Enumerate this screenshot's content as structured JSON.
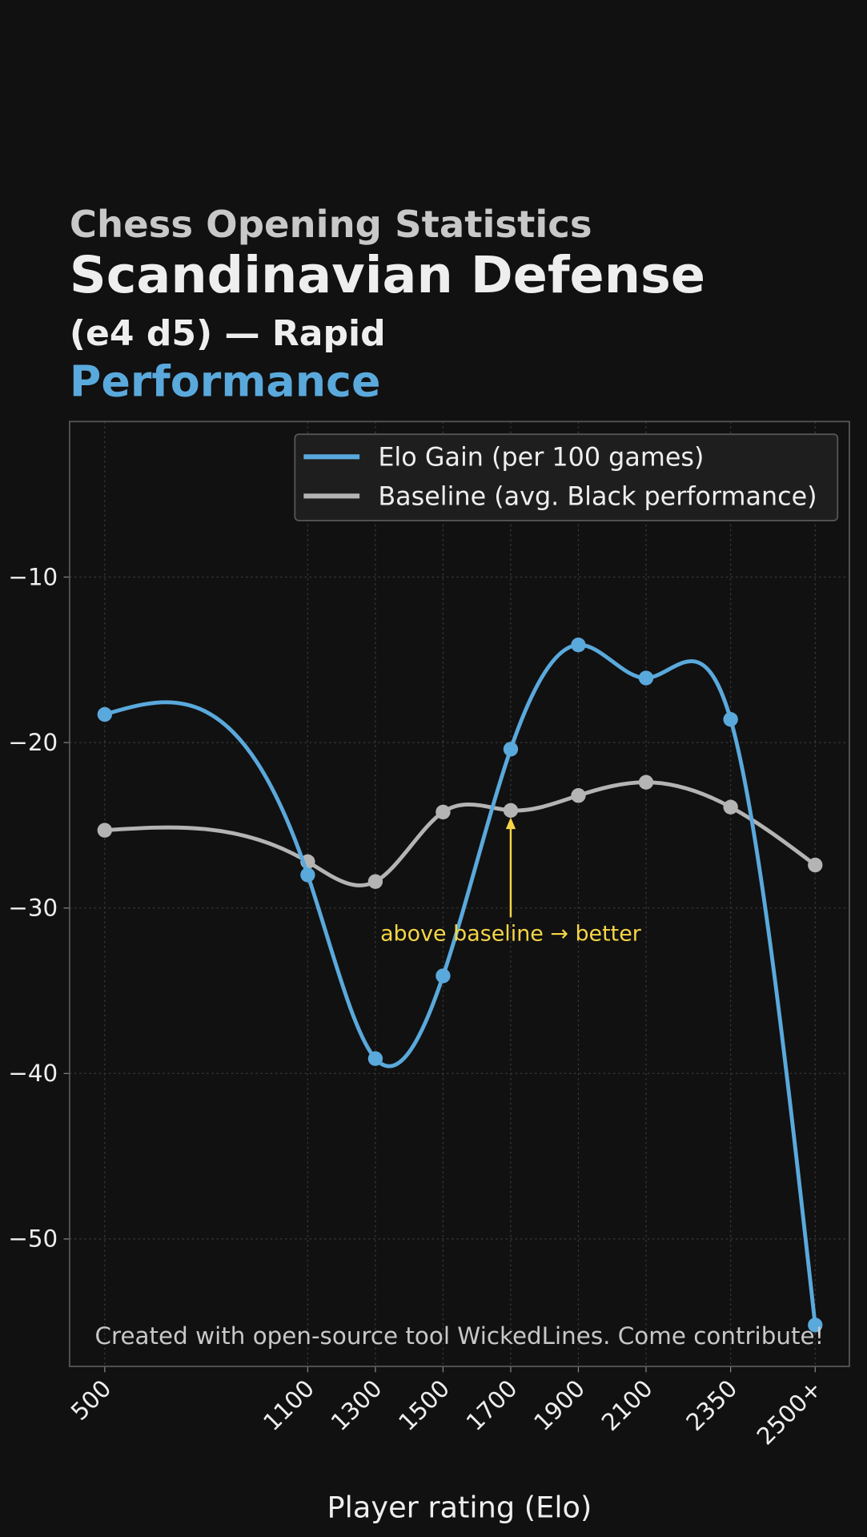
{
  "chart_data": {
    "type": "line",
    "supertitle": "Chess Opening Statistics",
    "title": "Scandinavian Defense",
    "subtitle": "(e4 d5) — Rapid",
    "title_highlight": "Performance",
    "xlabel": "Player rating (Elo)",
    "x": [
      500,
      1100,
      1300,
      1500,
      1700,
      1900,
      2100,
      2350,
      2600
    ],
    "xlim": [
      396,
      2701
    ],
    "xticks": [
      500,
      1100,
      1300,
      1500,
      1700,
      1900,
      2100,
      2350,
      {
        "value": 2600,
        "label": "2500+"
      }
    ],
    "ylim": [
      -57.7,
      -0.6
    ],
    "yticks": [
      {
        "value": -10,
        "label": "−10"
      },
      {
        "value": -20,
        "label": "−20"
      },
      {
        "value": -30,
        "label": "−30"
      },
      {
        "value": -40,
        "label": "−40"
      },
      {
        "value": -50,
        "label": "−50"
      }
    ],
    "grid": true,
    "legend": "upper right",
    "series": [
      {
        "name": "Elo Gain (per 100 games)",
        "color": "#5aa9dc",
        "values": [
          -18.3,
          -28.0,
          -39.1,
          -34.1,
          -20.4,
          -14.1,
          -16.1,
          -18.6,
          -55.2
        ]
      },
      {
        "name": "Baseline (avg. Black performance)",
        "color": "#b4b4b4",
        "values": [
          -25.3,
          -27.2,
          -28.4,
          -24.2,
          -24.1,
          -23.2,
          -22.4,
          -23.9,
          -27.4
        ]
      }
    ],
    "annotation": {
      "text": "above baseline → better",
      "x": 1700,
      "y": -24.4,
      "color": "#f5d547"
    },
    "footer": "Created with open-source tool WickedLines. Come contribute!"
  }
}
